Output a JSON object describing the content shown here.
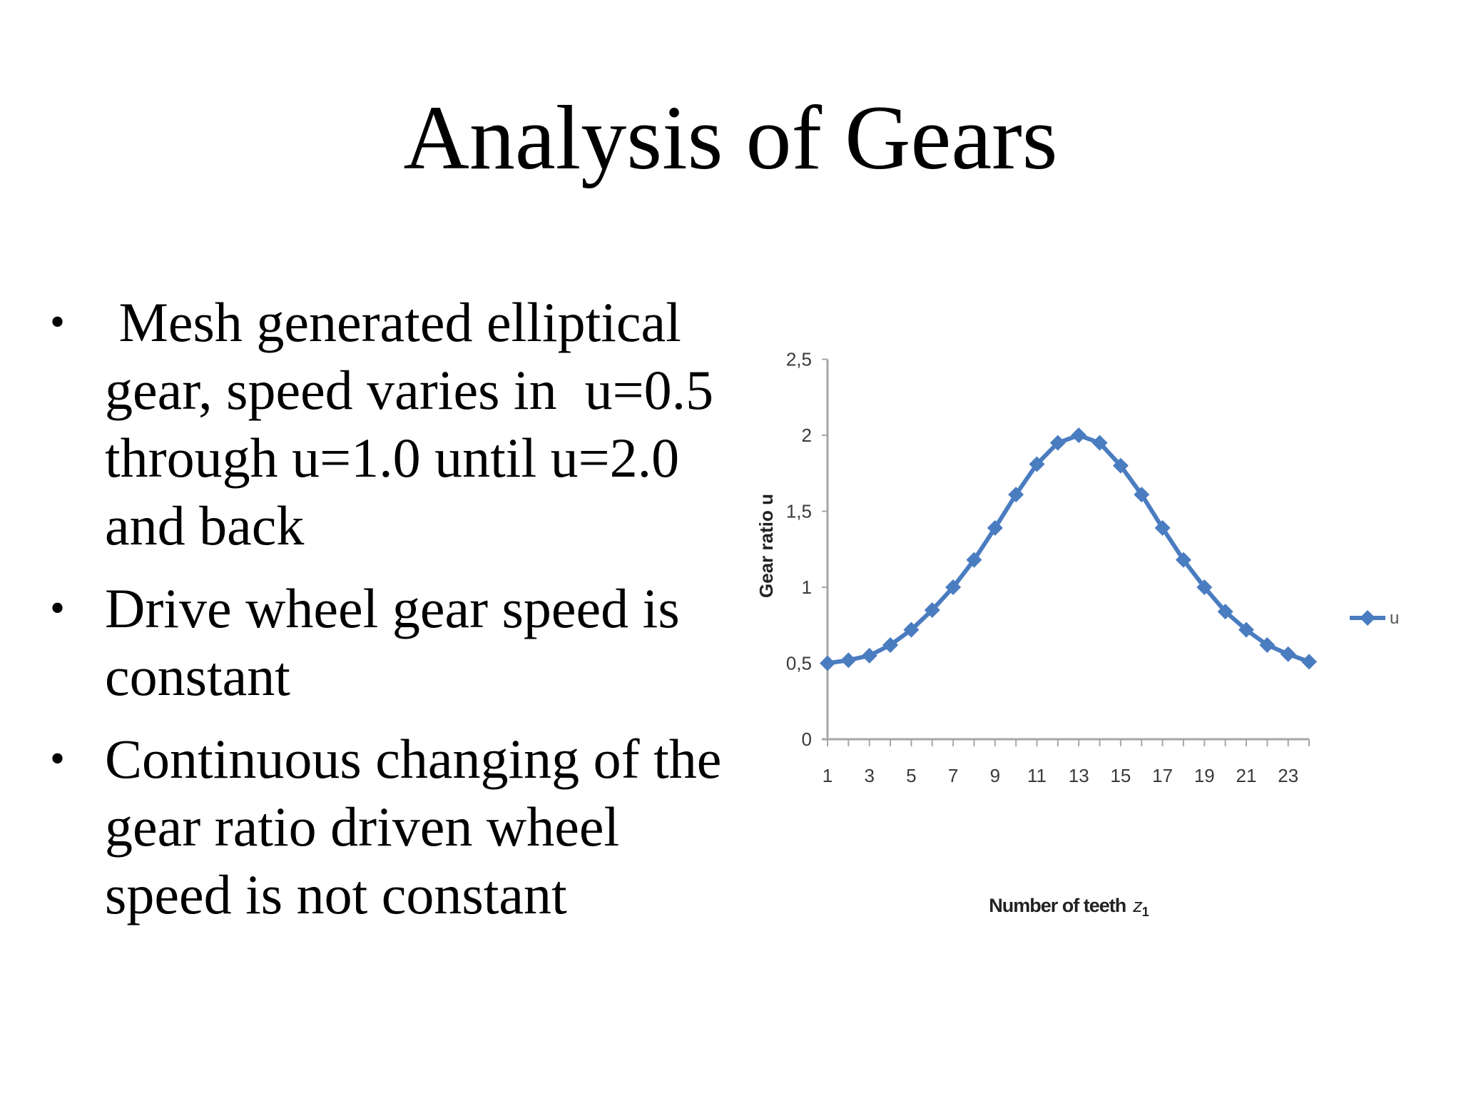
{
  "slide": {
    "title": "Analysis of Gears",
    "bullets": [
      {
        "text": " Mesh generated elliptical\ngear, speed varies in  u=0.5\nthrough u=1.0 until u=2.0\nand back"
      },
      {
        "text": "Drive wheel gear speed is\nconstant"
      },
      {
        "text": "Continuous changing of the\ngear ratio driven wheel\nspeed is not constant"
      }
    ],
    "bullet_glyph": "•"
  },
  "colors": {
    "series": "#4a7cc0",
    "axis": "#a6a6a6",
    "text": "#000000"
  },
  "chart_data": {
    "type": "line",
    "title": "",
    "xlabel": "Number of teeth z1",
    "xlabel_main": "Number of teeth",
    "xlabel_var": "z",
    "xlabel_sub": "1",
    "ylabel": "Gear ratio  u",
    "ylim": [
      0,
      2.5
    ],
    "yticks": [
      0,
      0.5,
      1,
      1.5,
      2,
      2.5
    ],
    "ytick_labels": [
      "0",
      "0,5",
      "1",
      "1,5",
      "2",
      "2,5"
    ],
    "x": [
      1,
      2,
      3,
      4,
      5,
      6,
      7,
      8,
      9,
      10,
      11,
      12,
      13,
      14,
      15,
      16,
      17,
      18,
      19,
      20,
      21,
      22,
      23,
      24
    ],
    "xtick_labels": [
      "1",
      "3",
      "5",
      "7",
      "9",
      "11",
      "13",
      "15",
      "17",
      "19",
      "21",
      "23"
    ],
    "series": [
      {
        "name": "u",
        "values": [
          0.5,
          0.52,
          0.55,
          0.62,
          0.72,
          0.85,
          1.0,
          1.18,
          1.39,
          1.61,
          1.81,
          1.95,
          2.0,
          1.95,
          1.8,
          1.61,
          1.39,
          1.18,
          1.0,
          0.84,
          0.72,
          0.62,
          0.56,
          0.51
        ]
      }
    ],
    "grid": false,
    "legend_position": "right",
    "marker": "diamond"
  }
}
